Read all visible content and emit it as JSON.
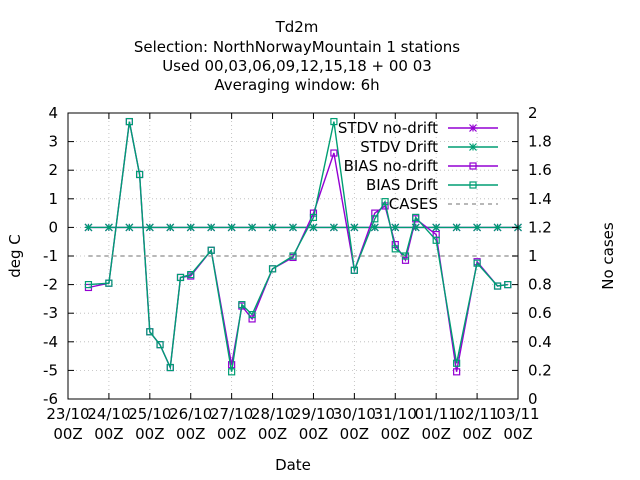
{
  "chart_data": {
    "type": "line",
    "title_lines": [
      "Td2m",
      "Selection: NorthNorwayMountain      1 stations",
      "Used  00,03,06,09,12,15,18  + 00 03",
      "Averaging window:  6h"
    ],
    "xlabel": "Date",
    "ylabel": "deg C",
    "y2label": "No cases",
    "x_range_days": [
      0,
      11
    ],
    "x_ticks": [
      {
        "day": 0,
        "label": [
          "23/10",
          "00Z"
        ]
      },
      {
        "day": 1,
        "label": [
          "24/10",
          "00Z"
        ]
      },
      {
        "day": 2,
        "label": [
          "25/10",
          "00Z"
        ]
      },
      {
        "day": 3,
        "label": [
          "26/10",
          "00Z"
        ]
      },
      {
        "day": 4,
        "label": [
          "27/10",
          "00Z"
        ]
      },
      {
        "day": 5,
        "label": [
          "28/10",
          "00Z"
        ]
      },
      {
        "day": 6,
        "label": [
          "29/10",
          "00Z"
        ]
      },
      {
        "day": 7,
        "label": [
          "30/10",
          "00Z"
        ]
      },
      {
        "day": 8,
        "label": [
          "31/10",
          "00Z"
        ]
      },
      {
        "day": 9,
        "label": [
          "01/11",
          "00Z"
        ]
      },
      {
        "day": 10,
        "label": [
          "02/11",
          "00Z"
        ]
      },
      {
        "day": 11,
        "label": [
          "03/11",
          "00Z"
        ]
      }
    ],
    "ylim": [
      -6,
      4
    ],
    "y_ticks": [
      -6,
      -5,
      -4,
      -3,
      -2,
      -1,
      0,
      1,
      2,
      3,
      4
    ],
    "y2lim": [
      0,
      2
    ],
    "y2_ticks": [
      "0",
      "0.2",
      "0.4",
      "0.6",
      "0.8",
      "1",
      "1.2",
      "1.4",
      "1.6",
      "1.8",
      "2"
    ],
    "grid": true,
    "legend_position": "top-right",
    "series": [
      {
        "name": "STDV no-drift",
        "color": "#9400d3",
        "marker": "star",
        "axis": "y",
        "x": [
          0.5,
          1.0,
          1.5,
          2.0,
          2.5,
          3.0,
          3.5,
          4.0,
          4.5,
          5.0,
          5.5,
          6.0,
          6.5,
          7.0,
          7.5,
          8.0,
          8.5,
          9.0,
          9.5,
          10.0,
          10.5,
          11.0
        ],
        "y": [
          0,
          0,
          0,
          0,
          0,
          0,
          0,
          0,
          0,
          0,
          0,
          0,
          0,
          0,
          0,
          0,
          0,
          0,
          0,
          0,
          0,
          0
        ]
      },
      {
        "name": "STDV Drift",
        "color": "#009e73",
        "marker": "star",
        "axis": "y",
        "x": [
          0.5,
          1.0,
          1.5,
          2.0,
          2.5,
          3.0,
          3.5,
          4.0,
          4.5,
          5.0,
          5.5,
          6.0,
          6.5,
          7.0,
          7.5,
          8.0,
          8.5,
          9.0,
          9.5,
          10.0,
          10.5,
          11.0
        ],
        "y": [
          0,
          0,
          0,
          0,
          0,
          0,
          0,
          0,
          0,
          0,
          0,
          0,
          0,
          0,
          0,
          0,
          0,
          0,
          0,
          0,
          0,
          0
        ]
      },
      {
        "name": "BIAS no-drift",
        "color": "#9400d3",
        "marker": "square",
        "axis": "y",
        "x": [
          0.5,
          1.0,
          1.5,
          1.75,
          2.0,
          2.25,
          2.5,
          2.75,
          3.0,
          3.5,
          4.0,
          4.25,
          4.5,
          5.0,
          5.5,
          6.0,
          6.5,
          7.0,
          7.5,
          7.75,
          8.0,
          8.25,
          8.5,
          9.0,
          9.5,
          10.0,
          10.5,
          10.75
        ],
        "y": [
          -2.1,
          -1.95,
          3.7,
          1.85,
          -3.65,
          -4.1,
          -4.9,
          -1.75,
          -1.7,
          -0.8,
          -4.8,
          -2.75,
          -3.2,
          -1.45,
          -1.05,
          0.5,
          2.6,
          -1.5,
          0.5,
          0.75,
          -0.6,
          -1.15,
          0.3,
          -0.25,
          -5.05,
          -1.2,
          -2.05,
          -2.0
        ]
      },
      {
        "name": "BIAS Drift",
        "color": "#009e73",
        "marker": "square",
        "axis": "y",
        "x": [
          0.5,
          1.0,
          1.5,
          1.75,
          2.0,
          2.25,
          2.5,
          2.75,
          3.0,
          3.5,
          4.0,
          4.25,
          4.5,
          5.0,
          5.5,
          6.0,
          6.5,
          7.0,
          7.5,
          7.75,
          8.0,
          8.25,
          8.5,
          9.0,
          9.5,
          10.0,
          10.5,
          10.75
        ],
        "y": [
          -2.0,
          -1.95,
          3.7,
          1.85,
          -3.65,
          -4.1,
          -4.9,
          -1.75,
          -1.65,
          -0.8,
          -5.05,
          -2.7,
          -3.05,
          -1.45,
          -1.0,
          0.35,
          3.7,
          -1.5,
          0.3,
          0.9,
          -0.75,
          -1.0,
          0.35,
          -0.45,
          -4.75,
          -1.25,
          -2.05,
          -2.0
        ]
      },
      {
        "name": "CASES",
        "color": "#a0a0a0",
        "marker": "none",
        "axis": "y2",
        "dashed": true,
        "x": [
          0.5,
          11.0
        ],
        "y": [
          1,
          1
        ]
      }
    ]
  }
}
